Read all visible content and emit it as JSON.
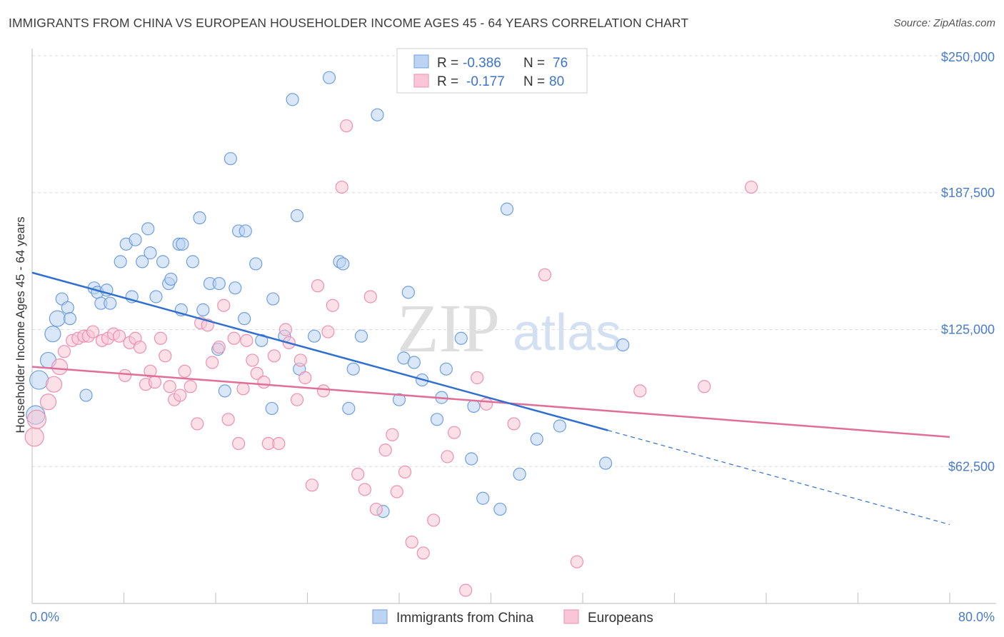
{
  "title": "IMMIGRANTS FROM CHINA VS EUROPEAN HOUSEHOLDER INCOME AGES 45 - 64 YEARS CORRELATION CHART",
  "source": "Source: ZipAtlas.com",
  "watermark": {
    "zip": "ZIP",
    "atlas": "atlas"
  },
  "colors": {
    "blue": "#6f9fdf",
    "blue_fill": "#bcd3f2",
    "pink": "#ee8fb0",
    "pink_fill": "#f8c6d6",
    "blue_line": "#2f6fd0",
    "pink_line": "#e06f98",
    "tick_text": "#4a7cc7"
  },
  "legend": {
    "r_label": "R =",
    "n_label": "N =",
    "rows": [
      {
        "r": "-0.386",
        "n": "76"
      },
      {
        "r": "-0.177",
        "n": "80"
      }
    ]
  },
  "bottom_legend": [
    "Immigrants from China",
    "Europeans"
  ],
  "chart_data": {
    "type": "scatter",
    "xlabel": "",
    "ylabel": "Householder Income Ages 45 - 64 years",
    "xlim": [
      0,
      80
    ],
    "ylim": [
      0,
      250000
    ],
    "x_tick_labels": [
      "0.0%",
      "80.0%"
    ],
    "y_ticks": [
      62500,
      125000,
      187500,
      250000
    ],
    "y_tick_labels": [
      "$62,500",
      "$125,000",
      "$187,500",
      "$250,000"
    ],
    "grid": true,
    "legend_position": "top-center",
    "series": [
      {
        "name": "Immigrants from China",
        "color": "#6f9fdf",
        "r": -0.386,
        "n": 76,
        "trend": {
          "x0": 0,
          "y0": 151000,
          "x1": 50.2,
          "y1": 79000,
          "dashed_to_x": 80,
          "dashed_to_y": 36000
        },
        "points": [
          [
            0.3,
            86000
          ],
          [
            0.6,
            102000
          ],
          [
            1.4,
            111000
          ],
          [
            1.8,
            123000
          ],
          [
            2.2,
            130000
          ],
          [
            2.6,
            139000
          ],
          [
            3.1,
            135000
          ],
          [
            3.3,
            130000
          ],
          [
            4.7,
            95000
          ],
          [
            5.4,
            144000
          ],
          [
            5.7,
            142000
          ],
          [
            6.0,
            137000
          ],
          [
            6.5,
            143000
          ],
          [
            6.8,
            137000
          ],
          [
            7.7,
            156000
          ],
          [
            8.2,
            164000
          ],
          [
            8.7,
            140000
          ],
          [
            9.0,
            166000
          ],
          [
            9.6,
            156000
          ],
          [
            10.1,
            171000
          ],
          [
            10.3,
            160000
          ],
          [
            10.8,
            140000
          ],
          [
            11.4,
            156000
          ],
          [
            11.9,
            146000
          ],
          [
            12.1,
            148000
          ],
          [
            12.8,
            164000
          ],
          [
            13.0,
            134000
          ],
          [
            13.1,
            164000
          ],
          [
            14.0,
            156000
          ],
          [
            14.6,
            176000
          ],
          [
            14.9,
            134000
          ],
          [
            15.5,
            146000
          ],
          [
            16.2,
            116000
          ],
          [
            16.3,
            146000
          ],
          [
            16.8,
            97000
          ],
          [
            17.3,
            203000
          ],
          [
            17.7,
            144000
          ],
          [
            18.0,
            170000
          ],
          [
            18.5,
            130000
          ],
          [
            18.6,
            170000
          ],
          [
            19.5,
            155000
          ],
          [
            20.0,
            120000
          ],
          [
            20.9,
            89000
          ],
          [
            21.0,
            139000
          ],
          [
            22.0,
            122000
          ],
          [
            22.7,
            230000
          ],
          [
            23.1,
            177000
          ],
          [
            23.3,
            107000
          ],
          [
            24.6,
            122000
          ],
          [
            25.9,
            240000
          ],
          [
            26.8,
            156000
          ],
          [
            27.1,
            155000
          ],
          [
            27.6,
            89000
          ],
          [
            28.0,
            107000
          ],
          [
            28.7,
            122000
          ],
          [
            30.1,
            223000
          ],
          [
            30.6,
            42000
          ],
          [
            32.0,
            93000
          ],
          [
            32.4,
            112000
          ],
          [
            32.8,
            142000
          ],
          [
            33.3,
            110000
          ],
          [
            34.0,
            102000
          ],
          [
            35.3,
            84000
          ],
          [
            35.7,
            94000
          ],
          [
            36.1,
            107000
          ],
          [
            37.4,
            121000
          ],
          [
            38.3,
            66000
          ],
          [
            38.5,
            90000
          ],
          [
            39.3,
            48000
          ],
          [
            40.8,
            43000
          ],
          [
            41.4,
            180000
          ],
          [
            42.5,
            59000
          ],
          [
            44.0,
            75000
          ],
          [
            46.0,
            81000
          ],
          [
            50.0,
            64000
          ],
          [
            51.5,
            118000
          ]
        ]
      },
      {
        "name": "Europeans",
        "color": "#ee8fb0",
        "r": -0.177,
        "n": 80,
        "trend": {
          "x0": 0,
          "y0": 108000,
          "x1": 80,
          "y1": 76000
        },
        "points": [
          [
            0.2,
            76000
          ],
          [
            0.4,
            84000
          ],
          [
            1.4,
            92000
          ],
          [
            1.9,
            100000
          ],
          [
            2.4,
            108000
          ],
          [
            2.8,
            115000
          ],
          [
            3.5,
            120000
          ],
          [
            4.0,
            121000
          ],
          [
            4.5,
            122000
          ],
          [
            4.9,
            122000
          ],
          [
            5.3,
            124000
          ],
          [
            6.1,
            120000
          ],
          [
            6.6,
            121000
          ],
          [
            7.1,
            123000
          ],
          [
            7.6,
            122000
          ],
          [
            8.1,
            104000
          ],
          [
            8.5,
            119000
          ],
          [
            9.0,
            121000
          ],
          [
            9.4,
            117000
          ],
          [
            9.9,
            100000
          ],
          [
            10.3,
            106000
          ],
          [
            10.7,
            101000
          ],
          [
            11.2,
            121000
          ],
          [
            11.6,
            113000
          ],
          [
            12.0,
            99000
          ],
          [
            12.4,
            93000
          ],
          [
            12.9,
            95000
          ],
          [
            13.3,
            106000
          ],
          [
            13.8,
            99000
          ],
          [
            14.4,
            82000
          ],
          [
            14.7,
            128000
          ],
          [
            15.3,
            127000
          ],
          [
            15.7,
            110000
          ],
          [
            16.3,
            117000
          ],
          [
            16.7,
            136000
          ],
          [
            17.1,
            84000
          ],
          [
            17.6,
            121000
          ],
          [
            18.0,
            73000
          ],
          [
            18.4,
            98000
          ],
          [
            18.7,
            120000
          ],
          [
            19.2,
            111000
          ],
          [
            19.6,
            105000
          ],
          [
            20.2,
            101000
          ],
          [
            20.6,
            73000
          ],
          [
            21.1,
            113000
          ],
          [
            21.5,
            73000
          ],
          [
            22.1,
            125000
          ],
          [
            22.4,
            119000
          ],
          [
            23.1,
            93000
          ],
          [
            23.4,
            111000
          ],
          [
            23.8,
            103000
          ],
          [
            24.4,
            54000
          ],
          [
            24.9,
            145000
          ],
          [
            25.4,
            97000
          ],
          [
            25.8,
            124000
          ],
          [
            26.2,
            136000
          ],
          [
            27.0,
            190000
          ],
          [
            27.4,
            218000
          ],
          [
            28.4,
            59000
          ],
          [
            29.0,
            52000
          ],
          [
            29.5,
            140000
          ],
          [
            30.0,
            43000
          ],
          [
            30.8,
            70000
          ],
          [
            31.4,
            77000
          ],
          [
            31.8,
            51000
          ],
          [
            32.5,
            60000
          ],
          [
            33.1,
            28000
          ],
          [
            34.1,
            23000
          ],
          [
            35.0,
            38000
          ],
          [
            36.2,
            67000
          ],
          [
            36.8,
            78000
          ],
          [
            37.8,
            6000
          ],
          [
            38.8,
            103000
          ],
          [
            39.6,
            91000
          ],
          [
            42.0,
            82000
          ],
          [
            44.7,
            150000
          ],
          [
            47.5,
            19000
          ],
          [
            53.0,
            97000
          ],
          [
            58.6,
            99000
          ],
          [
            62.7,
            190000
          ]
        ]
      }
    ]
  }
}
